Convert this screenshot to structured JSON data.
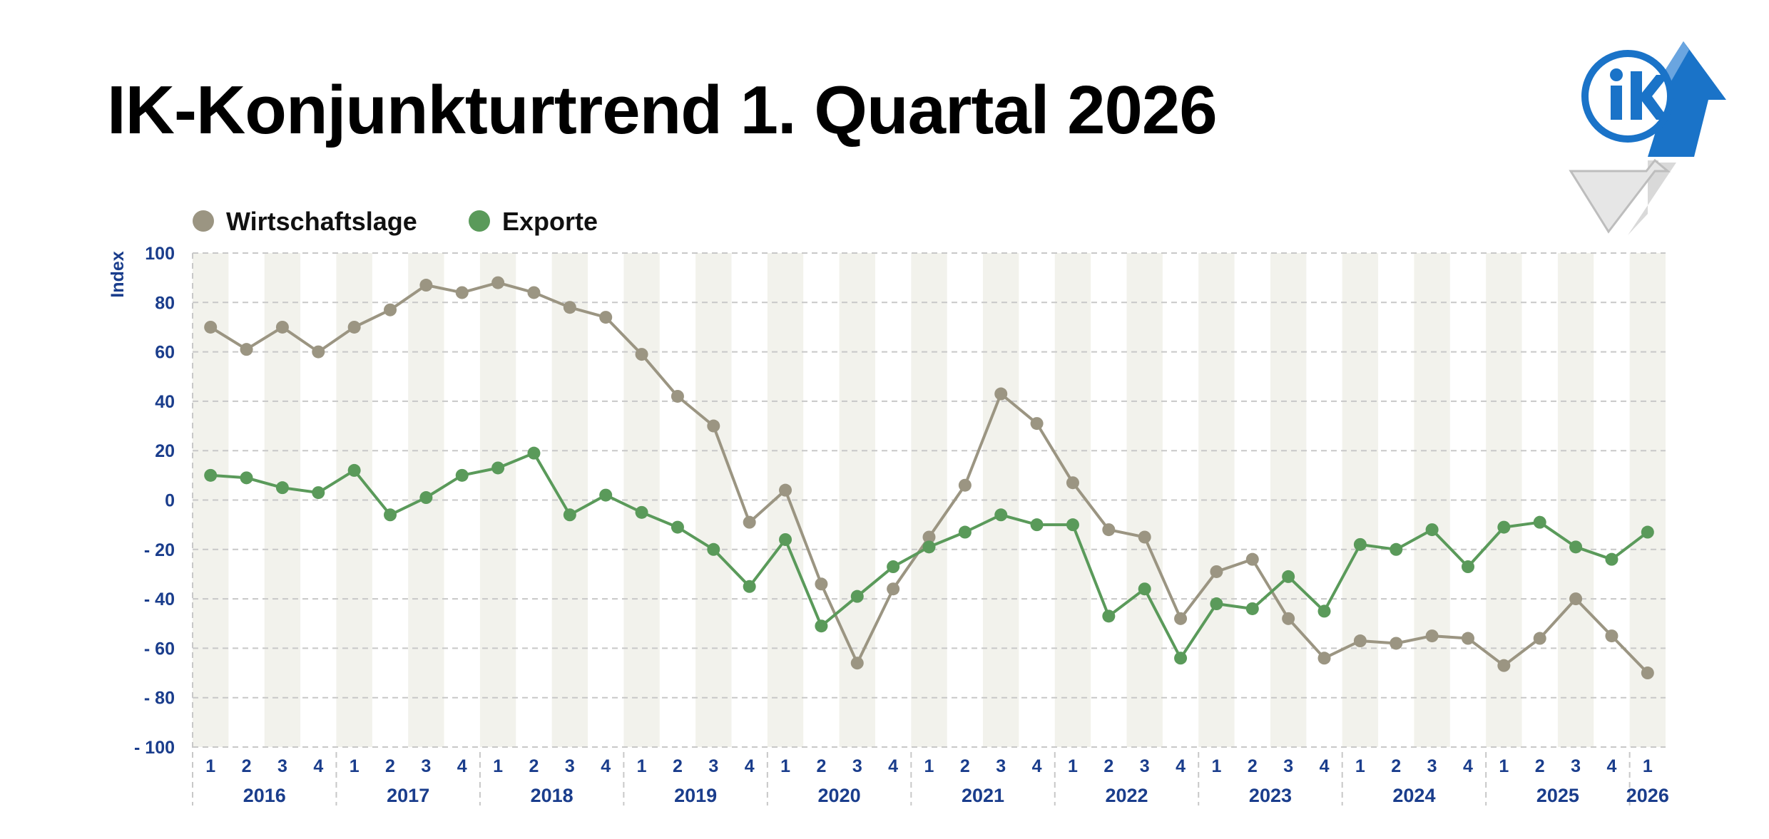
{
  "title": "IK-Konjunkturtrend 1. Quartal 2026",
  "logo": {
    "icon": "ik-logo-icon",
    "text": "ik",
    "colors": {
      "blue": "#1a73c8",
      "grey": "#d9d9d9"
    }
  },
  "chart_data": {
    "type": "line",
    "ylabel": "Index",
    "xlabel": "",
    "ylim": [
      -100,
      100
    ],
    "yticks": [
      100,
      80,
      60,
      40,
      20,
      0,
      -20,
      -40,
      -60,
      -80,
      -100
    ],
    "ytick_labels": [
      "100",
      "80",
      "60",
      "40",
      "20",
      "0",
      "- 20",
      "- 40",
      "- 60",
      "- 80",
      "- 100"
    ],
    "grid": true,
    "legend_position": "top-left",
    "colors": {
      "band": "#f2f2ec",
      "grid": "#c8c8c8",
      "axis_text": "#1a3d8c"
    },
    "quarter_labels": [
      "1",
      "2",
      "3",
      "4",
      "1",
      "2",
      "3",
      "4",
      "1",
      "2",
      "3",
      "4",
      "1",
      "2",
      "3",
      "4",
      "1",
      "2",
      "3",
      "4",
      "1",
      "2",
      "3",
      "4",
      "1",
      "2",
      "3",
      "4",
      "1",
      "2",
      "3",
      "4",
      "1",
      "2",
      "3",
      "4",
      "1",
      "2",
      "3",
      "4",
      "1"
    ],
    "years": [
      {
        "label": "2016",
        "quarters": 4
      },
      {
        "label": "2017",
        "quarters": 4
      },
      {
        "label": "2018",
        "quarters": 4
      },
      {
        "label": "2019",
        "quarters": 4
      },
      {
        "label": "2020",
        "quarters": 4
      },
      {
        "label": "2021",
        "quarters": 4
      },
      {
        "label": "2022",
        "quarters": 4
      },
      {
        "label": "2023",
        "quarters": 4
      },
      {
        "label": "2024",
        "quarters": 4
      },
      {
        "label": "2025",
        "quarters": 4
      },
      {
        "label": "2026",
        "quarters": 1
      }
    ],
    "series": [
      {
        "name": "Wirtschaftslage",
        "color": "#9b9582",
        "values": [
          70,
          61,
          70,
          60,
          70,
          77,
          87,
          84,
          88,
          84,
          78,
          74,
          59,
          42,
          30,
          -9,
          4,
          -34,
          -66,
          -36,
          -15,
          6,
          43,
          31,
          7,
          -12,
          -15,
          -48,
          -29,
          -24,
          -48,
          -64,
          -57,
          -58,
          -55,
          -56,
          -67,
          -56,
          -40,
          -55,
          -70
        ]
      },
      {
        "name": "Exporte",
        "color": "#5a9a5a",
        "values": [
          10,
          9,
          5,
          3,
          12,
          -6,
          1,
          10,
          13,
          19,
          -6,
          2,
          -5,
          -11,
          -20,
          -35,
          -16,
          -51,
          -39,
          -27,
          -19,
          -13,
          -6,
          -10,
          -10,
          -47,
          -36,
          -64,
          -42,
          -44,
          -31,
          -45,
          -18,
          -20,
          -12,
          -27,
          -11,
          -9,
          -19,
          -24,
          -13
        ]
      }
    ]
  }
}
